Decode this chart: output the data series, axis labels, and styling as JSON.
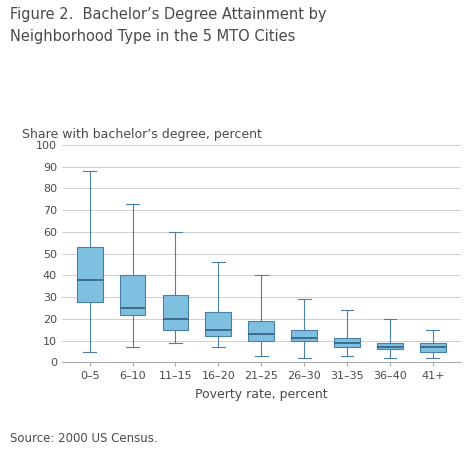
{
  "title_line1": "Figure 2.  Bachelor’s Degree Attainment by",
  "title_line2": "Neighborhood Type in the 5 MTO Cities",
  "ylabel": "Share with bachelor’s degree, percent",
  "xlabel": "Poverty rate, percent",
  "source": "Source: 2000 US Census.",
  "categories": [
    "0–5",
    "6–10",
    "11–15",
    "16–20",
    "21–25",
    "26–30",
    "31–35",
    "36–40",
    "41+"
  ],
  "box_data": [
    {
      "whislo": 5,
      "q1": 28,
      "med": 38,
      "q3": 53,
      "whishi": 88
    },
    {
      "whislo": 7,
      "q1": 22,
      "med": 25,
      "q3": 40,
      "whishi": 73
    },
    {
      "whislo": 9,
      "q1": 15,
      "med": 20,
      "q3": 31,
      "whishi": 60
    },
    {
      "whislo": 7,
      "q1": 12,
      "med": 15,
      "q3": 23,
      "whishi": 46
    },
    {
      "whislo": 3,
      "q1": 10,
      "med": 13,
      "q3": 19,
      "whishi": 40
    },
    {
      "whislo": 2,
      "q1": 10,
      "med": 11,
      "q3": 15,
      "whishi": 29
    },
    {
      "whislo": 3,
      "q1": 7,
      "med": 9,
      "q3": 11,
      "whishi": 24
    },
    {
      "whislo": 2,
      "q1": 6,
      "med": 7,
      "q3": 9,
      "whishi": 20
    },
    {
      "whislo": 2,
      "q1": 5,
      "med": 7,
      "q3": 9,
      "whishi": 15
    }
  ],
  "box_color": "#7fbfdf",
  "box_edge_color": "#4a7faa",
  "median_color": "#2f5f80",
  "whisker_color": "#4a7faa",
  "cap_color": "#4a7faa",
  "ylim": [
    0,
    100
  ],
  "yticks": [
    0,
    10,
    20,
    30,
    40,
    50,
    60,
    70,
    80,
    90,
    100
  ],
  "bg_color": "#ffffff",
  "grid_color": "#d0d0d0",
  "title_fontsize": 10.5,
  "label_fontsize": 9,
  "tick_fontsize": 8,
  "source_fontsize": 8.5,
  "text_color": "#4a4a4a"
}
